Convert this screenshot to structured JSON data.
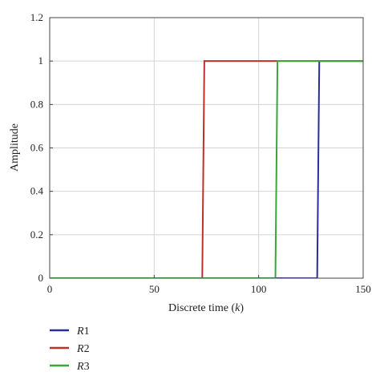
{
  "chart_data": {
    "type": "line",
    "title": "",
    "xlabel_prefix": "Discrete time (",
    "xlabel_var": "k",
    "xlabel_suffix": ")",
    "ylabel": "Amplitude",
    "xlim": [
      0,
      150
    ],
    "ylim": [
      0,
      1.2
    ],
    "xticks": [
      0,
      50,
      100,
      150
    ],
    "xtick_labels": [
      "0",
      "50",
      "100",
      "150"
    ],
    "yticks": [
      0,
      0.2,
      0.4,
      0.6,
      0.8,
      1.0,
      1.2
    ],
    "ytick_labels": [
      "0",
      "0.2",
      "0.4",
      "0.6",
      "0.8",
      "1",
      "1.2"
    ],
    "grid": true,
    "legend_placement": "below-left",
    "series": [
      {
        "name": "R1",
        "name_letter": "R",
        "name_index": "1",
        "color": "#2b2d9a",
        "x": [
          0,
          128,
          129,
          150
        ],
        "y": [
          0,
          0,
          1,
          1
        ]
      },
      {
        "name": "R2",
        "name_letter": "R",
        "name_index": "2",
        "color": "#c0302b",
        "x": [
          0,
          73,
          74,
          150
        ],
        "y": [
          0,
          0,
          1,
          1
        ]
      },
      {
        "name": "R3",
        "name_letter": "R",
        "name_index": "3",
        "color": "#3aa63a",
        "x": [
          0,
          108,
          109,
          150
        ],
        "y": [
          0,
          0,
          1,
          1
        ]
      }
    ]
  }
}
